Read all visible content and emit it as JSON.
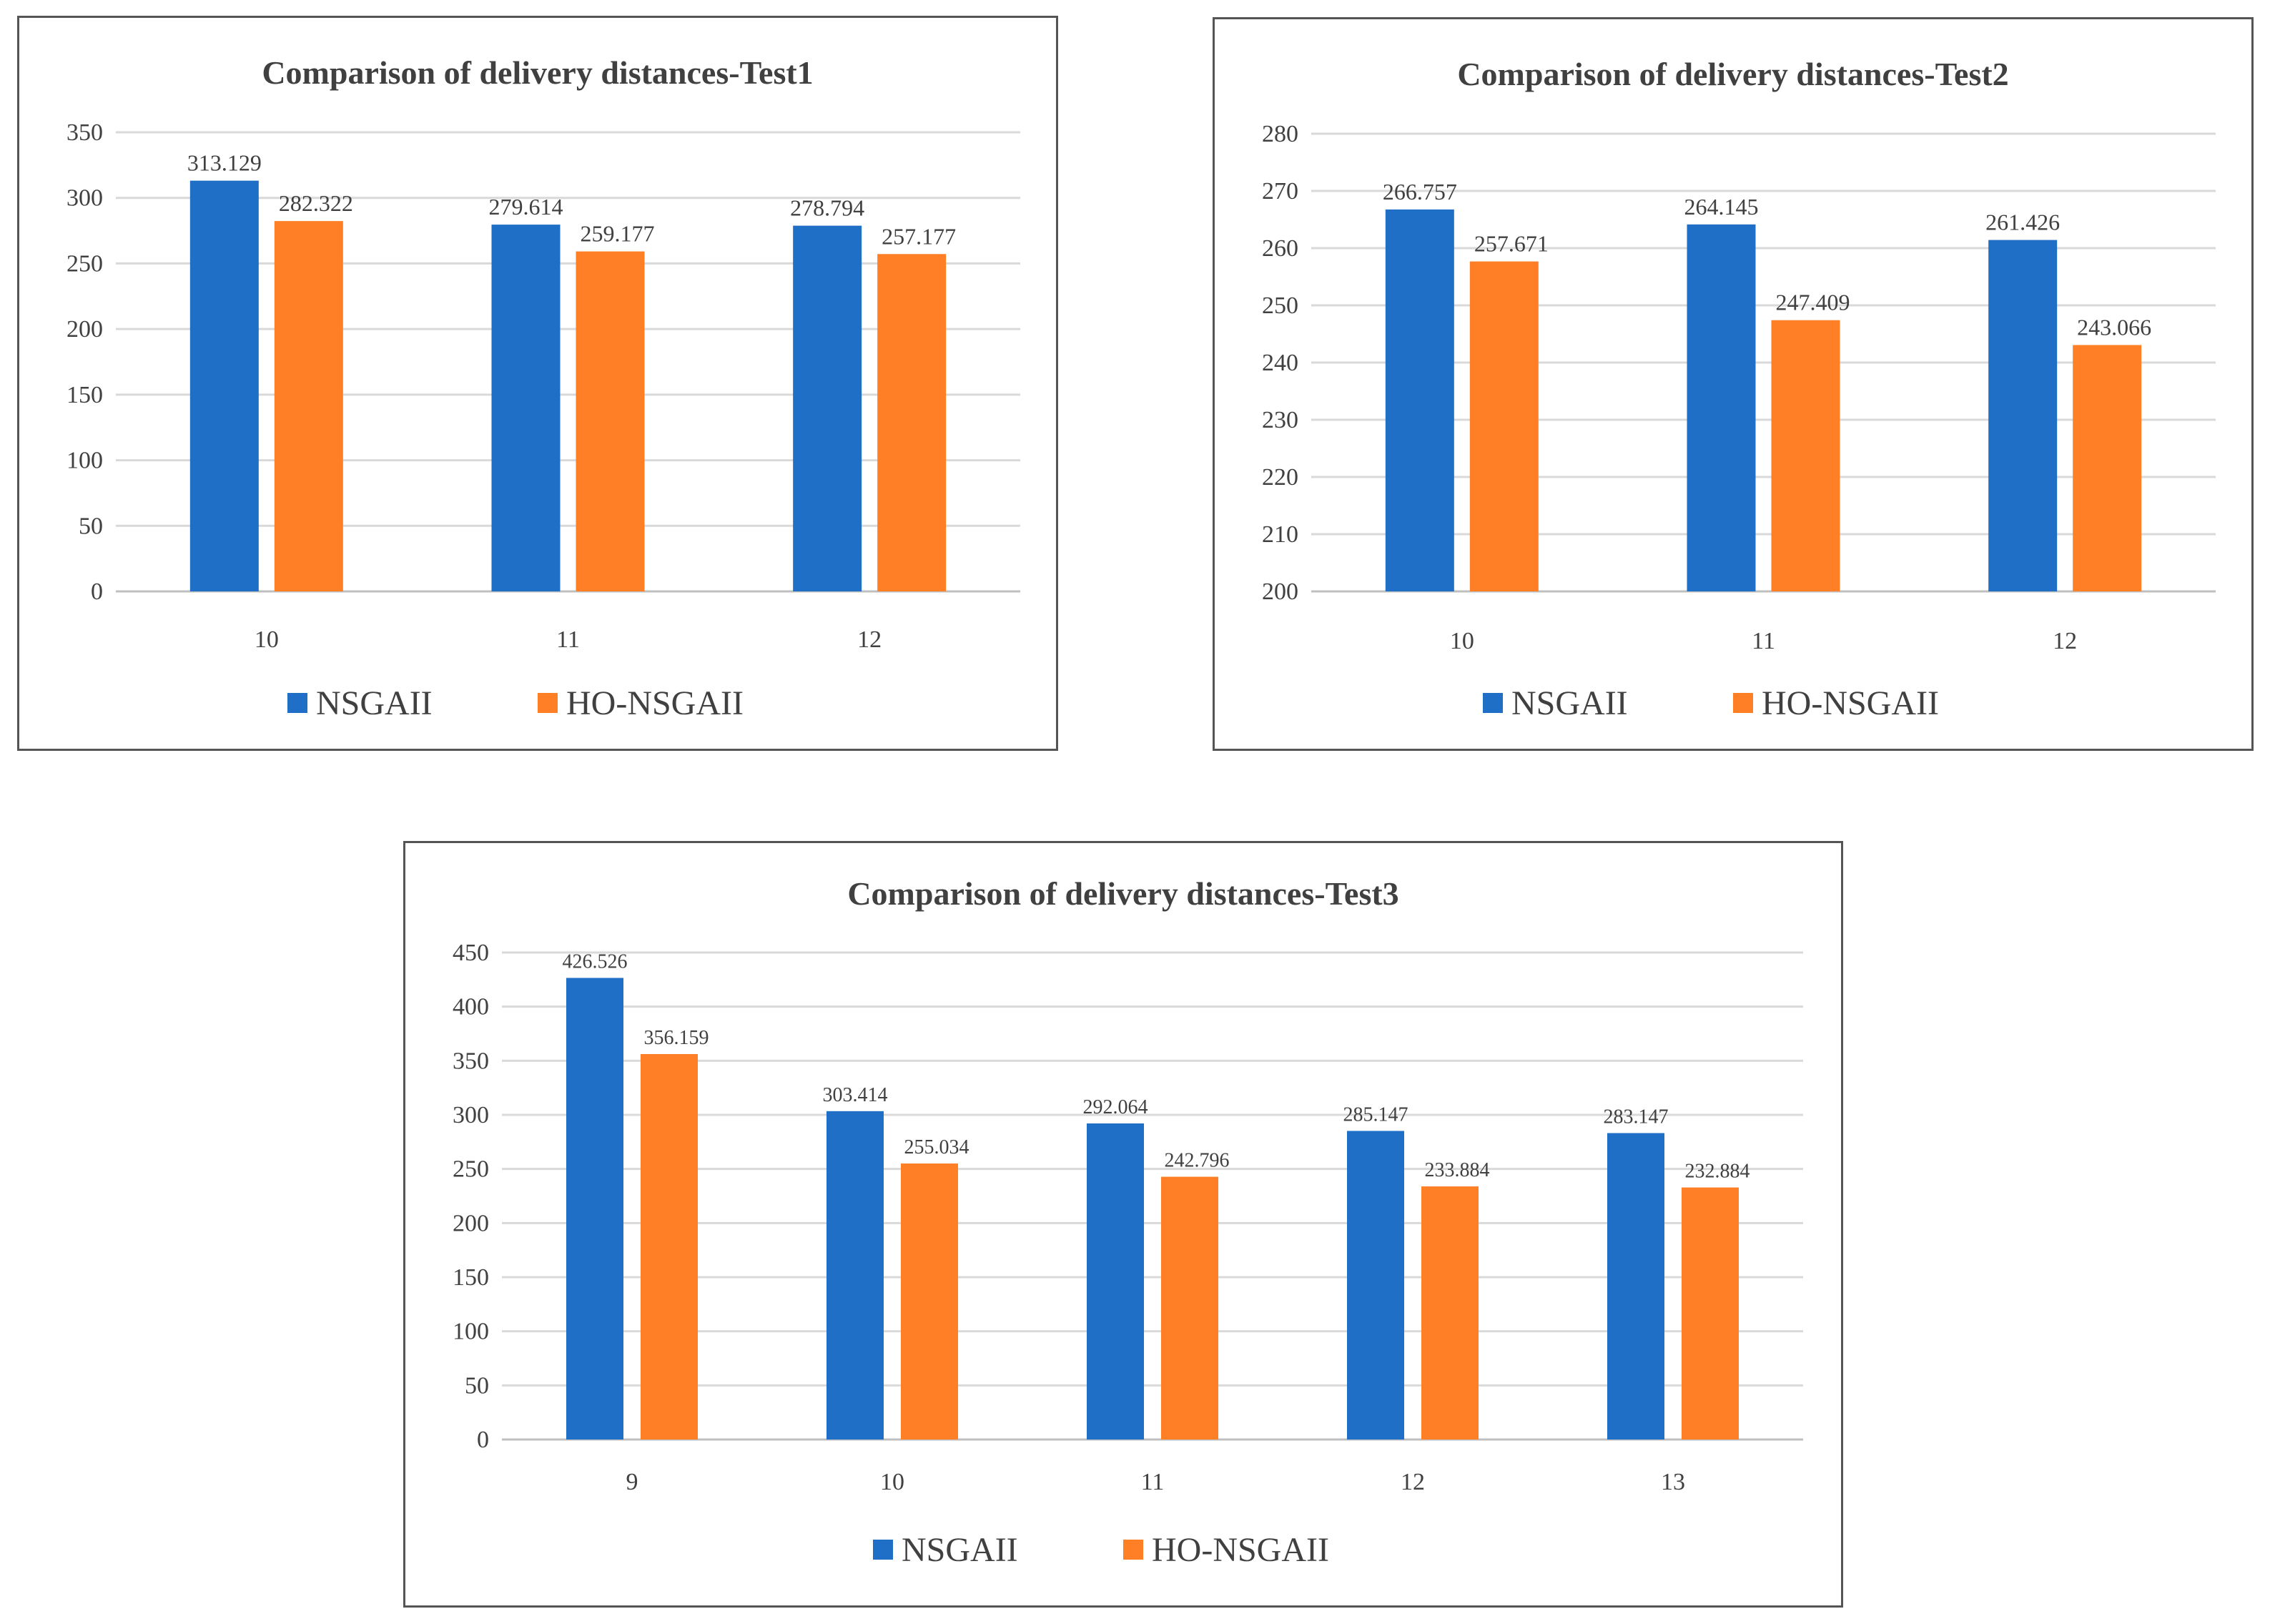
{
  "colors": {
    "nsgaii": "#1f6fc6",
    "ho_nsgaii": "#ff7f27",
    "grid": "#d9d9d9",
    "axis": "#bfbfbf",
    "text": "#404040"
  },
  "chart_data": [
    {
      "type": "bar",
      "title": "Comparison of delivery distances-Test1",
      "categories": [
        "10",
        "11",
        "12"
      ],
      "series": [
        {
          "name": "NSGAII",
          "values": [
            313.129,
            279.614,
            278.794
          ]
        },
        {
          "name": "HO-NSGAII",
          "values": [
            282.322,
            259.177,
            257.177
          ]
        }
      ],
      "value_labels": [
        [
          "313.129",
          "279.614",
          "278.794"
        ],
        [
          "282.322",
          "259.177",
          "257.177"
        ]
      ],
      "ylim": [
        0,
        350
      ],
      "yticks": [
        "0",
        "50",
        "100",
        "150",
        "200",
        "250",
        "300",
        "350"
      ],
      "grid": true,
      "legend": "bottom"
    },
    {
      "type": "bar",
      "title": "Comparison of delivery distances-Test2",
      "categories": [
        "10",
        "11",
        "12"
      ],
      "series": [
        {
          "name": "NSGAII",
          "values": [
            266.757,
            264.145,
            261.426
          ]
        },
        {
          "name": "HO-NSGAII",
          "values": [
            257.671,
            247.409,
            243.066
          ]
        }
      ],
      "value_labels": [
        [
          "266.757",
          "264.145",
          "261.426"
        ],
        [
          "257.671",
          "247.409",
          "243.066"
        ]
      ],
      "ylim": [
        200,
        280
      ],
      "yticks": [
        "200",
        "210",
        "220",
        "230",
        "240",
        "250",
        "260",
        "270",
        "280"
      ],
      "grid": true,
      "legend": "bottom"
    },
    {
      "type": "bar",
      "title": "Comparison of delivery distances-Test3",
      "categories": [
        "9",
        "10",
        "11",
        "12",
        "13"
      ],
      "series": [
        {
          "name": "NSGAII",
          "values": [
            426.526,
            303.414,
            292.064,
            285.147,
            283.147
          ]
        },
        {
          "name": "HO-NSGAII",
          "values": [
            356.159,
            255.034,
            242.796,
            233.884,
            232.884
          ]
        }
      ],
      "value_labels": [
        [
          "426.526",
          "303.414",
          "292.064",
          "285.147",
          "283.147"
        ],
        [
          "356.159",
          "255.034",
          "242.796",
          "233.884",
          "232.884"
        ]
      ],
      "ylim": [
        0,
        450
      ],
      "yticks": [
        "0",
        "50",
        "100",
        "150",
        "200",
        "250",
        "300",
        "350",
        "400",
        "450"
      ],
      "grid": true,
      "legend": "bottom"
    }
  ]
}
